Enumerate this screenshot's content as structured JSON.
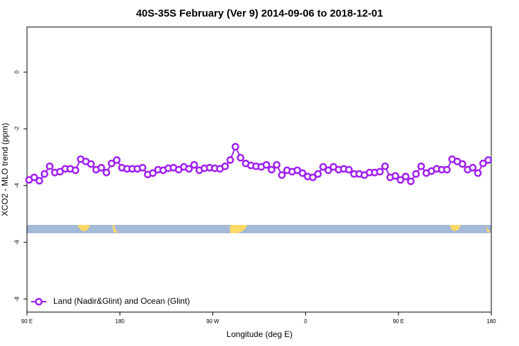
{
  "chart_data": {
    "type": "line",
    "title": "40S-35S February (Ver 9)   2014-09-06 to 2018-12-01",
    "x_label": "Longitude (deg E)",
    "y_label": "XCO2 - MLO trend (ppm)",
    "x": [
      92,
      97,
      102,
      107,
      112,
      117,
      122,
      127,
      132,
      137,
      142,
      147,
      152,
      157,
      162,
      167,
      172,
      177,
      182,
      187,
      192,
      197,
      202,
      207,
      212,
      217,
      222,
      227,
      232,
      237,
      242,
      247,
      252,
      257,
      262,
      267,
      272,
      277,
      282,
      287,
      292,
      297,
      302,
      307,
      312,
      317,
      322,
      327,
      332,
      337,
      342,
      347,
      352,
      357,
      362,
      367,
      372,
      377,
      382,
      387,
      392,
      397,
      402,
      407,
      412,
      417,
      422,
      427,
      432,
      437,
      442,
      447,
      452,
      457,
      462,
      467,
      472,
      477,
      482,
      487,
      492,
      497,
      502,
      507,
      512,
      517,
      522,
      527,
      532,
      537
    ],
    "series": [
      {
        "name": "Land (Nadir&Glint) and Ocean (Glint)",
        "color": "#a020f0",
        "values": [
          -3.8,
          -3.71,
          -3.83,
          -3.59,
          -3.32,
          -3.54,
          -3.51,
          -3.41,
          -3.41,
          -3.46,
          -3.07,
          -3.15,
          -3.24,
          -3.44,
          -3.37,
          -3.54,
          -3.22,
          -3.1,
          -3.37,
          -3.41,
          -3.41,
          -3.41,
          -3.37,
          -3.61,
          -3.56,
          -3.44,
          -3.46,
          -3.39,
          -3.37,
          -3.44,
          -3.34,
          -3.41,
          -3.27,
          -3.46,
          -3.39,
          -3.37,
          -3.39,
          -3.41,
          -3.32,
          -3.1,
          -2.63,
          -3.02,
          -3.22,
          -3.29,
          -3.32,
          -3.34,
          -3.27,
          -3.44,
          -3.27,
          -3.63,
          -3.46,
          -3.51,
          -3.46,
          -3.56,
          -3.68,
          -3.71,
          -3.59,
          -3.34,
          -3.46,
          -3.34,
          -3.44,
          -3.41,
          -3.44,
          -3.59,
          -3.59,
          -3.63,
          -3.54,
          -3.54,
          -3.51,
          -3.32,
          -3.71,
          -3.66,
          -3.8,
          -3.68,
          -3.85,
          -3.59,
          -3.32,
          -3.56,
          -3.49,
          -3.41,
          -3.44,
          -3.44,
          -3.07,
          -3.15,
          -3.24,
          -3.44,
          -3.37,
          -3.56,
          -3.22,
          -3.1
        ]
      }
    ],
    "xlim": [
      90,
      540
    ],
    "xticks": [
      {
        "value": 90,
        "label": "90 E"
      },
      {
        "value": 180,
        "label": "180"
      },
      {
        "value": 270,
        "label": "90 W"
      },
      {
        "value": 360,
        "label": "0"
      },
      {
        "value": 450,
        "label": "90 E"
      },
      {
        "value": 540,
        "label": "180"
      }
    ],
    "ylim": [
      -8.46,
      1.59
    ],
    "yticks": [
      0,
      -2,
      -4,
      -6,
      -8
    ],
    "legend": "bottom-left"
  }
}
